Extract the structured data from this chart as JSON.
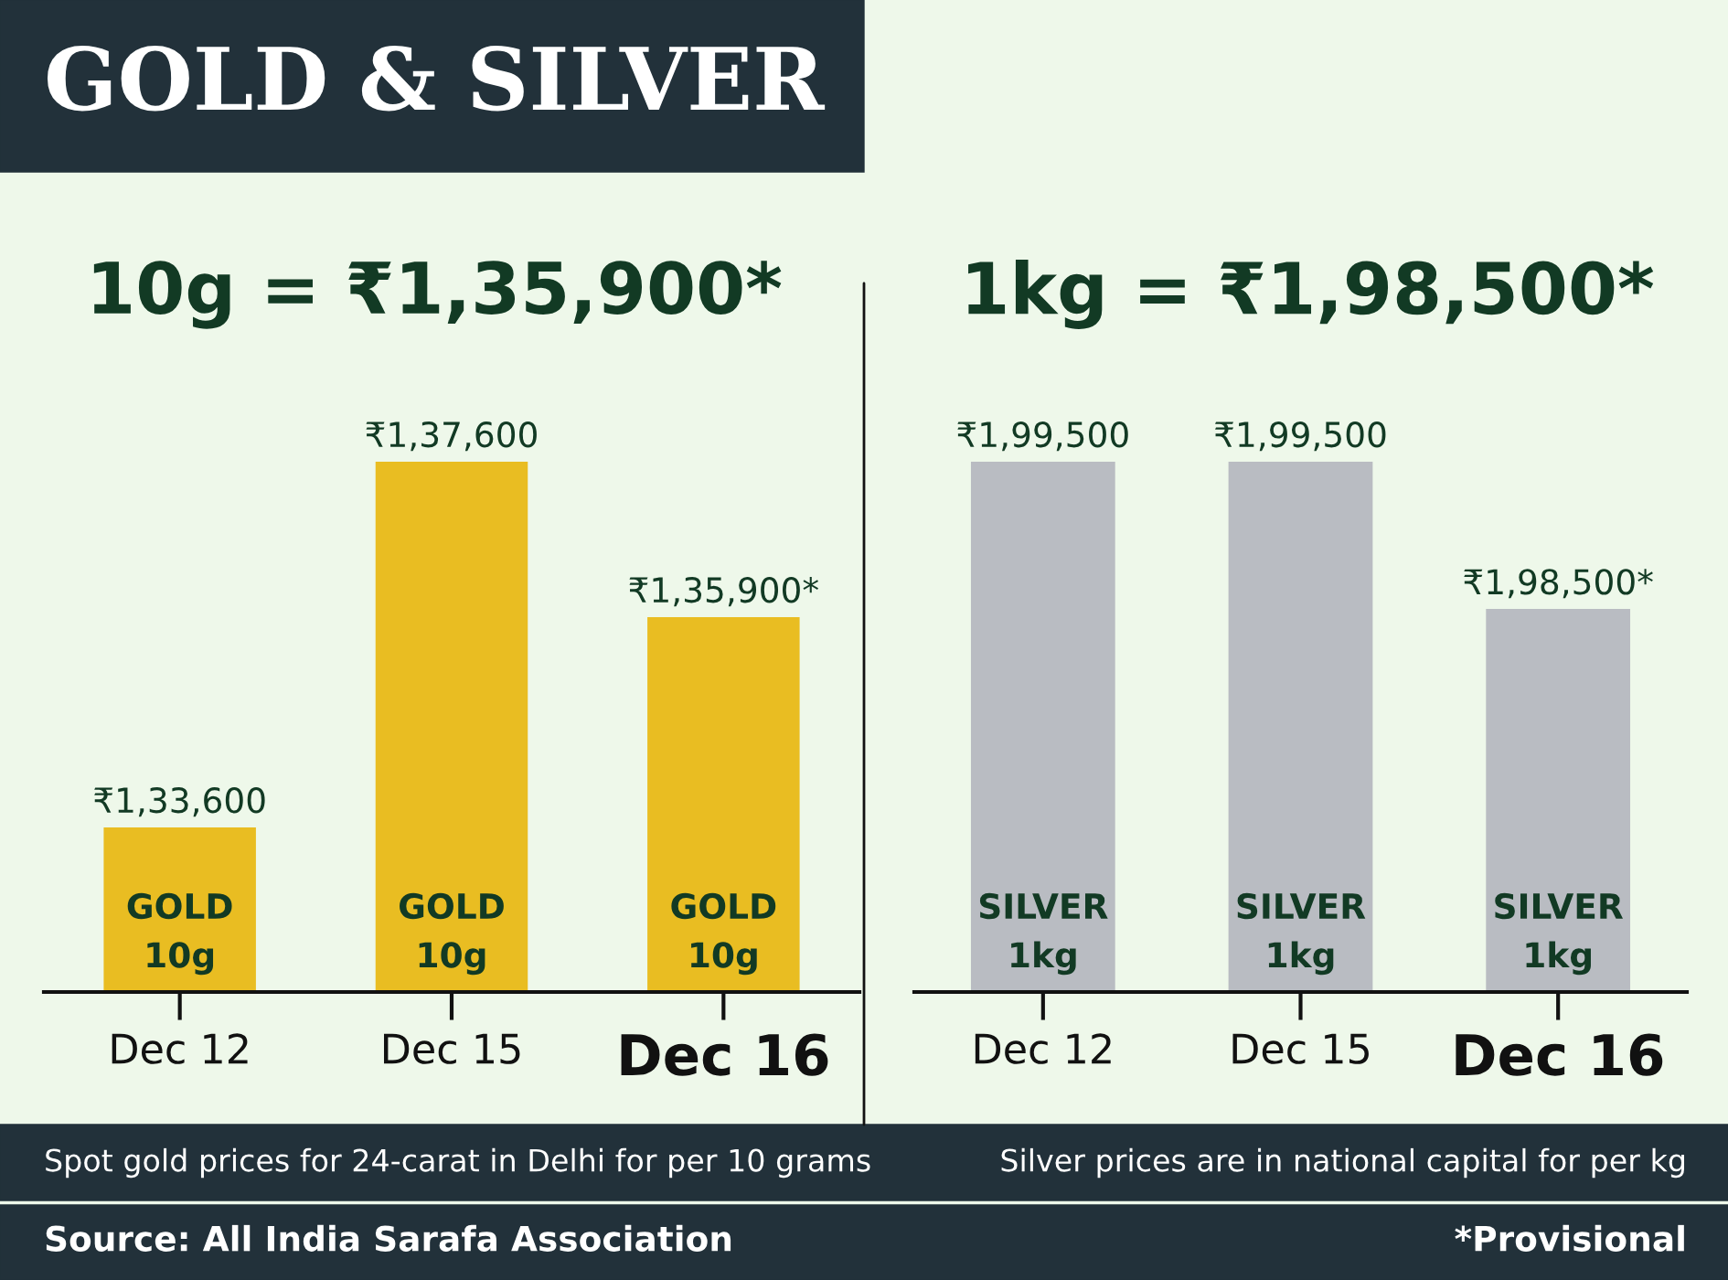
{
  "chart_data": [
    {
      "type": "bar",
      "title": "GOLD & SILVER",
      "subtitle": "10g = ₹1,35,900*",
      "categories": [
        "Dec 12",
        "Dec 15",
        "Dec 16"
      ],
      "ylim": [
        131800,
        137600
      ],
      "series": [
        {
          "name": "GOLD\n10g",
          "color": "#e9bd22",
          "values": [
            133600,
            137600,
            135900
          ],
          "value_labels": [
            "₹1,33,600",
            "₹1,37,600",
            "₹1,35,900*"
          ]
        }
      ],
      "annotations": [
        "Spot gold prices for 24-carat in Delhi for per 10 grams",
        "Source: All India Sarafa Association"
      ]
    },
    {
      "type": "bar",
      "subtitle": "1kg = ₹1,98,500*",
      "categories": [
        "Dec 12",
        "Dec 15",
        "Dec 16"
      ],
      "ylim": [
        195900,
        199500
      ],
      "series": [
        {
          "name": "SILVER\n1kg",
          "color": "#b9bcc2",
          "values": [
            199500,
            199500,
            198500
          ],
          "value_labels": [
            "₹1,99,500",
            "₹1,99,500",
            "₹1,98,500*"
          ]
        }
      ],
      "annotations": [
        "Silver prices are in national capital for per kg",
        "*Provisional"
      ]
    }
  ]
}
